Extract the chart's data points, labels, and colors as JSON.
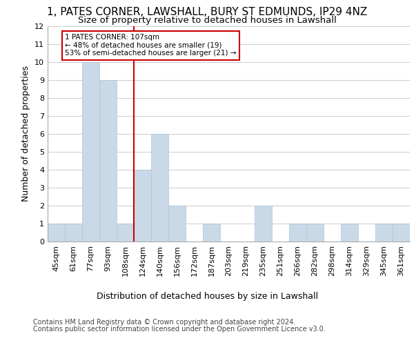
{
  "title1": "1, PATES CORNER, LAWSHALL, BURY ST EDMUNDS, IP29 4NZ",
  "title2": "Size of property relative to detached houses in Lawshall",
  "xlabel": "Distribution of detached houses by size in Lawshall",
  "ylabel": "Number of detached properties",
  "footer1": "Contains HM Land Registry data © Crown copyright and database right 2024.",
  "footer2": "Contains public sector information licensed under the Open Government Licence v3.0.",
  "bins": [
    "45sqm",
    "61sqm",
    "77sqm",
    "93sqm",
    "108sqm",
    "124sqm",
    "140sqm",
    "156sqm",
    "172sqm",
    "187sqm",
    "203sqm",
    "219sqm",
    "235sqm",
    "251sqm",
    "266sqm",
    "282sqm",
    "298sqm",
    "314sqm",
    "329sqm",
    "345sqm",
    "361sqm"
  ],
  "values": [
    1,
    1,
    10,
    9,
    1,
    4,
    6,
    2,
    0,
    1,
    0,
    0,
    2,
    0,
    1,
    1,
    0,
    1,
    0,
    1,
    1
  ],
  "bar_color": "#c9d9e8",
  "bar_edgecolor": "#aec6d8",
  "vline_x_index": 4,
  "vline_color": "#cc0000",
  "annotation_text": "1 PATES CORNER: 107sqm\n← 48% of detached houses are smaller (19)\n53% of semi-detached houses are larger (21) →",
  "annotation_box_color": "#cc0000",
  "ylim": [
    0,
    12
  ],
  "yticks": [
    0,
    1,
    2,
    3,
    4,
    5,
    6,
    7,
    8,
    9,
    10,
    11,
    12
  ],
  "grid_color": "#cccccc",
  "bg_color": "#ffffff",
  "title1_fontsize": 11,
  "title2_fontsize": 9.5,
  "xlabel_fontsize": 9,
  "ylabel_fontsize": 9,
  "tick_fontsize": 8,
  "footer_fontsize": 7
}
